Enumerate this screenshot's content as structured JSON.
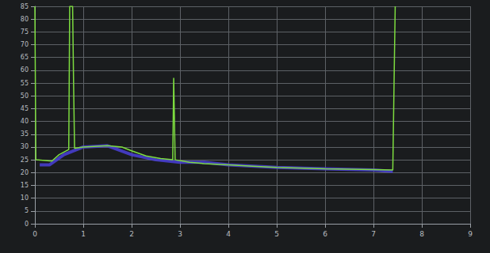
{
  "chart_data": {
    "type": "line",
    "xlim": [
      0,
      9
    ],
    "xticks": [
      0,
      1,
      2,
      3,
      4,
      5,
      6,
      7,
      8,
      9
    ],
    "ylim": [
      0,
      85
    ],
    "yticks": [
      0,
      5,
      10,
      15,
      20,
      25,
      30,
      35,
      40,
      45,
      50,
      55,
      60,
      65,
      70,
      75,
      80,
      85
    ],
    "grid": true,
    "series": [
      {
        "color": "#7ddc3f",
        "x": [
          0,
          0.02,
          0.35,
          0.5,
          0.7,
          0.72,
          0.78,
          0.8,
          0.82,
          1,
          1.5,
          1.8,
          2,
          2.3,
          2.6,
          2.85,
          2.87,
          2.9,
          3.2,
          3.5,
          4,
          4.5,
          5,
          6,
          7,
          7.4,
          7.43,
          7.45
        ],
        "values": [
          85,
          25,
          24.5,
          27,
          29,
          85,
          85,
          55,
          29.5,
          30,
          30.5,
          30,
          28.5,
          26.5,
          25.5,
          25,
          57,
          25,
          24,
          23.5,
          23,
          22.5,
          22,
          21.5,
          21.2,
          21,
          60,
          85
        ]
      },
      {
        "color": "#4a3fd8",
        "x": [
          0.1,
          0.3,
          0.6,
          1,
          1.5,
          2,
          2.5,
          3,
          3.5,
          4,
          5,
          6,
          7,
          7.4
        ],
        "values": [
          23,
          23,
          27,
          30,
          30.5,
          27,
          25,
          24,
          24,
          23,
          22,
          21.5,
          21,
          20.5
        ]
      }
    ]
  }
}
